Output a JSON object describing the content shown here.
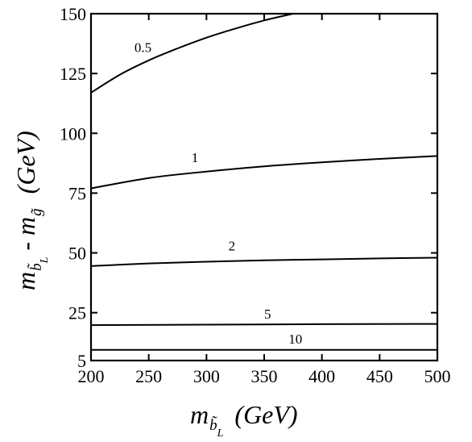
{
  "chart_data": {
    "type": "line",
    "title": "",
    "x_axis": {
      "label_italic": "m",
      "label_sub": "b̃",
      "label_subsub": "L",
      "label_units": "(GeV)",
      "range": [
        200,
        500
      ],
      "ticks": [
        200,
        250,
        300,
        350,
        400,
        450,
        500
      ]
    },
    "y_axis": {
      "label_m1": "m",
      "label_sub1": "b̃",
      "label_subsub1": "L",
      "label_minus": "-",
      "label_m2": "m",
      "label_sub2": "g̃",
      "label_units": "(GeV)",
      "range": [
        5,
        150
      ],
      "ticks": [
        5,
        25,
        50,
        75,
        100,
        125,
        150
      ]
    },
    "grid": false,
    "series": [
      {
        "name": "0.5",
        "label_at": [
          245,
          134
        ],
        "x": [
          200,
          225,
          250,
          275,
          300,
          325,
          350,
          375
        ],
        "y": [
          117,
          124.5,
          130.5,
          135.5,
          140,
          143.8,
          147.2,
          150
        ]
      },
      {
        "name": "1",
        "label_at": [
          290,
          88
        ],
        "x": [
          200,
          250,
          300,
          350,
          400,
          450,
          500
        ],
        "y": [
          77,
          81.3,
          84,
          86.2,
          87.9,
          89.3,
          90.5
        ]
      },
      {
        "name": "2",
        "label_at": [
          322,
          51
        ],
        "x": [
          200,
          250,
          300,
          350,
          400,
          450,
          500
        ],
        "y": [
          44.5,
          45.6,
          46.3,
          46.9,
          47.3,
          47.7,
          48
        ]
      },
      {
        "name": "5",
        "label_at": [
          353,
          22.5
        ],
        "x": [
          200,
          300,
          400,
          500
        ],
        "y": [
          19.8,
          20,
          20.2,
          20.3
        ]
      },
      {
        "name": "10",
        "label_at": [
          377,
          12
        ],
        "x": [
          200,
          300,
          400,
          500
        ],
        "y": [
          9.5,
          9.5,
          9.5,
          9.5
        ]
      }
    ]
  }
}
